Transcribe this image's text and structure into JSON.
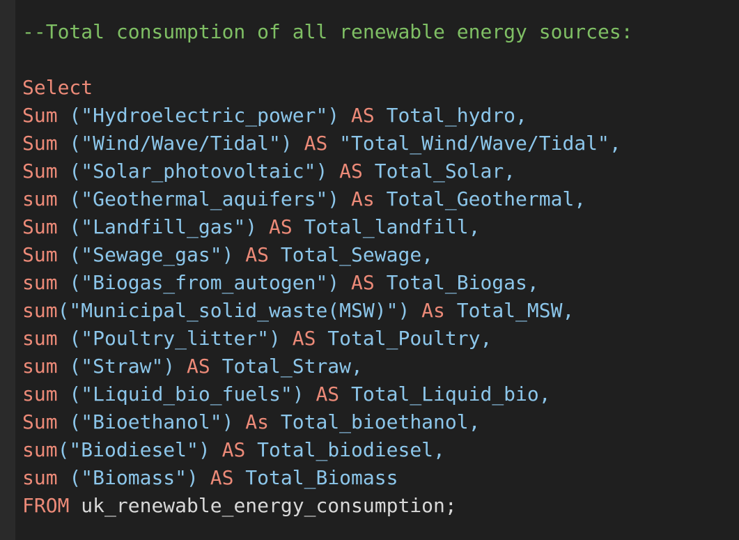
{
  "comment": "--Total consumption of all renewable energy sources:",
  "select": "Select",
  "lines": [
    {
      "func": "Sum",
      "args": " (\"Hydroelectric_power\")",
      "kw": " AS",
      "alias": " Total_hydro,"
    },
    {
      "func": "Sum",
      "args": " (\"Wind/Wave/Tidal\")",
      "kw": " AS",
      "alias": " \"Total_Wind/Wave/Tidal\","
    },
    {
      "func": "Sum",
      "args": " (\"Solar_photovoltaic\")",
      "kw": " AS",
      "alias": " Total_Solar,"
    },
    {
      "func": "sum",
      "args": " (\"Geothermal_aquifers\")",
      "kw": " As",
      "alias": " Total_Geothermal,"
    },
    {
      "func": "Sum",
      "args": " (\"Landfill_gas\")",
      "kw": " AS",
      "alias": " Total_landfill,"
    },
    {
      "func": "Sum",
      "args": " (\"Sewage_gas\")",
      "kw": " AS",
      "alias": " Total_Sewage,"
    },
    {
      "func": "sum",
      "args": " (\"Biogas_from_autogen\")",
      "kw": " AS",
      "alias": " Total_Biogas,"
    },
    {
      "func": "sum",
      "args": "(\"Municipal_solid_waste(MSW)\")",
      "kw": " As",
      "alias": " Total_MSW,"
    },
    {
      "func": "sum",
      "args": " (\"Poultry_litter\")",
      "kw": " AS",
      "alias": " Total_Poultry,"
    },
    {
      "func": "sum",
      "args": " (\"Straw\")",
      "kw": " AS",
      "alias": " Total_Straw,"
    },
    {
      "func": "sum",
      "args": " (\"Liquid_bio_fuels\")",
      "kw": " AS",
      "alias": " Total_Liquid_bio,"
    },
    {
      "func": "Sum",
      "args": " (\"Bioethanol\")",
      "kw": " As",
      "alias": " Total_bioethanol,"
    },
    {
      "func": "sum",
      "args": "(\"Biodiesel\")",
      "kw": " AS",
      "alias": " Total_biodiesel,"
    },
    {
      "func": "sum",
      "args": " (\"Biomass\")",
      "kw": " AS",
      "alias": " Total_Biomass"
    }
  ],
  "from": {
    "kw": "FROM",
    "table": " uk_renewable_energy_consumption;"
  }
}
